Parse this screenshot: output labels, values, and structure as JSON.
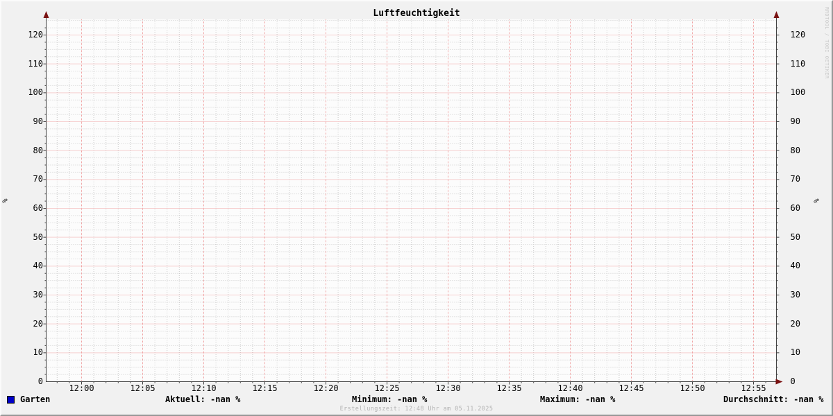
{
  "chart": {
    "title": "Luftfeuchtigkeit"
  },
  "chart_data": {
    "type": "line",
    "title": "Luftfeuchtigkeit",
    "ylabel": "%",
    "ylabel_right": "%",
    "xlabel": "",
    "x_ticks": [
      "12:00",
      "12:05",
      "12:10",
      "12:15",
      "12:20",
      "12:25",
      "12:30",
      "12:35",
      "12:40",
      "12:45",
      "12:50",
      "12:55"
    ],
    "y_ticks": [
      0,
      10,
      20,
      30,
      40,
      50,
      60,
      70,
      80,
      90,
      100,
      110,
      120
    ],
    "ylim": [
      0,
      125
    ],
    "grid": "major red dotted every 10 units / 5 min, minor gray dotted every 2.5 units / 1 min",
    "legend_position": "bottom",
    "series": [
      {
        "name": "Garten",
        "color": "#0000c8",
        "values": [],
        "note": "no data plotted (-nan)"
      }
    ],
    "colors": {
      "canvas": "#fcfcfc",
      "background": "#f1f1f1",
      "major_grid": "#f0a1a1",
      "minor_grid": "#cbcbcb",
      "axis": "#404040",
      "arrow": "#7a1212"
    }
  },
  "legend": {
    "series": {
      "swatch_color": "#0000c8",
      "label": "Garten"
    },
    "stats": {
      "aktuell": "Aktuell: -nan %",
      "minimum": "Minimum: -nan %",
      "maximum": "Maximum: -nan %",
      "durchschnitt": "Durchschnitt: -nan %"
    }
  },
  "footer": {
    "created": "Erstellungszeit: 12:48 Uhr am 05.11.2025"
  },
  "watermark": "RRDTOOL / TOBI OETIKER"
}
